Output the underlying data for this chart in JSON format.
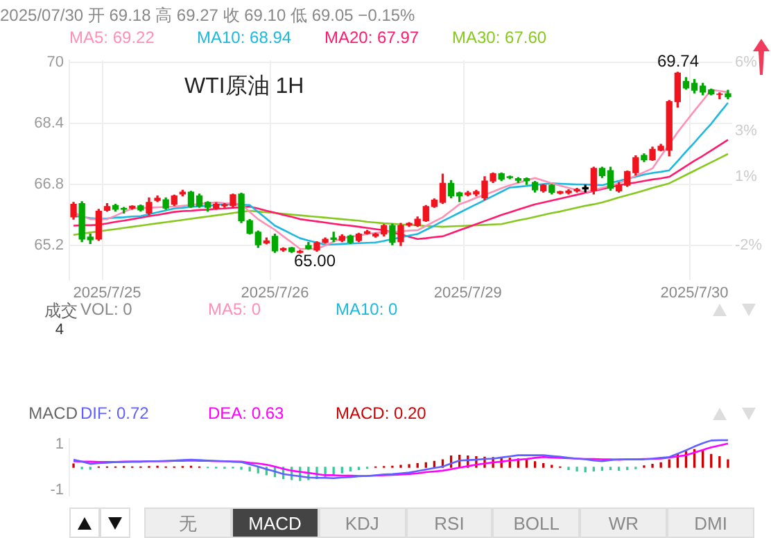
{
  "chart_data": [
    {
      "type": "candlestick",
      "title": "WTI原油 1H",
      "annotations": [
        "2025/07/30 开 69.18 高 69.27 收 69.10 低 69.05 −0.15%",
        "69.74",
        "65.00"
      ],
      "categories": [
        null,
        null,
        null,
        null,
        "2025/7/25",
        null,
        null,
        null,
        null,
        null,
        null,
        null,
        null,
        null,
        null,
        null,
        null,
        null,
        null,
        null,
        null,
        null,
        null,
        null,
        "2025/7/26",
        null,
        null,
        null,
        null,
        null,
        null,
        null,
        null,
        null,
        null,
        null,
        null,
        null,
        null,
        null,
        null,
        null,
        null,
        null,
        null,
        null,
        null,
        "2025/7/29",
        null,
        null,
        null,
        null,
        null,
        null,
        null,
        null,
        null,
        null,
        null,
        null,
        null,
        null,
        null,
        null,
        null,
        null,
        null,
        null,
        null,
        null,
        null,
        null,
        null,
        null,
        "2025/7/30",
        null,
        null,
        null,
        null
      ],
      "ohlc": [
        [
          65.95,
          66.33,
          65.89,
          66.28
        ],
        [
          66.3,
          66.35,
          65.3,
          65.37
        ],
        [
          65.42,
          65.5,
          65.25,
          65.35
        ],
        [
          65.37,
          66.15,
          65.33,
          66.1
        ],
        [
          66.12,
          66.3,
          66.1,
          66.22
        ],
        [
          66.25,
          66.28,
          66.1,
          66.15
        ],
        [
          66.17,
          66.2,
          66.05,
          66.15
        ],
        [
          66.18,
          66.24,
          66.15,
          66.23
        ],
        [
          66.24,
          66.26,
          66.1,
          66.13
        ],
        [
          66.05,
          66.45,
          66.0,
          66.33
        ],
        [
          66.38,
          66.5,
          66.35,
          66.44
        ],
        [
          66.4,
          66.45,
          66.15,
          66.18
        ],
        [
          66.28,
          66.52,
          66.25,
          66.5
        ],
        [
          66.55,
          66.65,
          66.5,
          66.6
        ],
        [
          66.6,
          66.62,
          66.2,
          66.22
        ],
        [
          66.5,
          66.55,
          66.2,
          66.23
        ],
        [
          66.33,
          66.35,
          66.1,
          66.2
        ],
        [
          66.18,
          66.32,
          66.15,
          66.28
        ],
        [
          66.24,
          66.3,
          66.2,
          66.27
        ],
        [
          66.25,
          66.55,
          66.2,
          66.53
        ],
        [
          66.55,
          66.57,
          65.8,
          65.85
        ],
        [
          65.85,
          65.88,
          65.5,
          65.52
        ],
        [
          65.55,
          65.58,
          65.15,
          65.22
        ],
        [
          65.27,
          65.4,
          65.24,
          65.32
        ],
        [
          65.44,
          65.5,
          65.02,
          65.06
        ],
        [
          65.08,
          65.14,
          65.05,
          65.12
        ],
        [
          65.14,
          65.15,
          65.02,
          65.04
        ],
        [
          65.02,
          65.07,
          65.0,
          65.05
        ],
        [
          65.2,
          65.28,
          65.1,
          65.12
        ],
        [
          65.08,
          65.3,
          65.05,
          65.27
        ],
        [
          65.28,
          65.4,
          65.26,
          65.36
        ],
        [
          65.4,
          65.55,
          65.3,
          65.36
        ],
        [
          65.33,
          65.48,
          65.3,
          65.44
        ],
        [
          65.45,
          65.47,
          65.25,
          65.28
        ],
        [
          65.33,
          65.52,
          65.3,
          65.5
        ],
        [
          65.52,
          65.6,
          65.5,
          65.56
        ],
        [
          65.45,
          65.52,
          65.42,
          65.5
        ],
        [
          65.5,
          65.75,
          65.45,
          65.72
        ],
        [
          65.72,
          65.76,
          65.22,
          65.28
        ],
        [
          65.3,
          65.78,
          65.2,
          65.72
        ],
        [
          65.74,
          65.8,
          65.7,
          65.78
        ],
        [
          65.72,
          65.95,
          65.7,
          65.89
        ],
        [
          65.85,
          66.25,
          65.83,
          66.22
        ],
        [
          66.22,
          66.42,
          66.2,
          66.39
        ],
        [
          66.33,
          67.07,
          66.3,
          66.83
        ],
        [
          66.83,
          66.9,
          66.45,
          66.5
        ],
        [
          66.58,
          66.6,
          66.35,
          66.5
        ],
        [
          66.53,
          66.62,
          66.5,
          66.58
        ],
        [
          66.55,
          66.65,
          66.5,
          66.61
        ],
        [
          66.45,
          67.0,
          66.4,
          66.89
        ],
        [
          66.89,
          67.1,
          66.85,
          67.08
        ],
        [
          67.08,
          67.1,
          66.9,
          66.94
        ],
        [
          67.0,
          67.02,
          66.95,
          66.98
        ],
        [
          66.95,
          66.98,
          66.85,
          66.91
        ],
        [
          66.95,
          66.97,
          66.8,
          66.9
        ],
        [
          66.85,
          66.88,
          66.6,
          66.66
        ],
        [
          66.63,
          66.8,
          66.6,
          66.78
        ],
        [
          66.78,
          66.8,
          66.55,
          66.59
        ],
        [
          66.57,
          66.62,
          66.55,
          66.61
        ],
        [
          66.58,
          66.66,
          66.55,
          66.63
        ],
        [
          66.63,
          66.7,
          66.6,
          66.67
        ],
        [
          66.68,
          66.78,
          66.6,
          66.72
        ],
        [
          66.63,
          67.25,
          66.55,
          67.22
        ],
        [
          67.22,
          67.25,
          66.98,
          67.03
        ],
        [
          67.16,
          67.25,
          66.65,
          66.7
        ],
        [
          66.63,
          66.85,
          66.6,
          66.78
        ],
        [
          66.78,
          67.15,
          66.75,
          67.14
        ],
        [
          67.11,
          67.55,
          67.05,
          67.5
        ],
        [
          67.56,
          67.6,
          67.4,
          67.45
        ],
        [
          67.45,
          67.78,
          67.43,
          67.72
        ],
        [
          67.7,
          67.85,
          67.68,
          67.8
        ],
        [
          67.7,
          69.0,
          67.55,
          68.97
        ],
        [
          68.97,
          69.74,
          68.83,
          69.72
        ],
        [
          69.5,
          69.6,
          69.3,
          69.33
        ],
        [
          69.45,
          69.55,
          69.2,
          69.27
        ],
        [
          69.38,
          69.45,
          69.15,
          69.22
        ],
        [
          69.28,
          69.3,
          69.15,
          69.17
        ],
        [
          69.16,
          69.2,
          69.05,
          69.17
        ],
        [
          69.18,
          69.27,
          69.05,
          69.1
        ]
      ],
      "colors": [
        "#f0141e",
        "#00a800",
        "#00a800",
        "#f0141e",
        "#f0141e",
        "#00a800",
        "#00a800",
        "#f0141e",
        "#00a800",
        "#f0141e",
        "#f0141e",
        "#00a800",
        "#f0141e",
        "#f0141e",
        "#00a800",
        "#00a800",
        "#00a800",
        "#f0141e",
        "#f0141e",
        "#f0141e",
        "#00a800",
        "#00a800",
        "#00a800",
        "#f0141e",
        "#00a800",
        "#f0141e",
        "#00a800",
        "#f0141e",
        "#00a800",
        "#f0141e",
        "#f0141e",
        "#00a800",
        "#f0141e",
        "#00a800",
        "#f0141e",
        "#f0141e",
        "#f0141e",
        "#f0141e",
        "#00a800",
        "#f0141e",
        "#f0141e",
        "#f0141e",
        "#f0141e",
        "#f0141e",
        "#f0141e",
        "#00a800",
        "#00a800",
        "#f0141e",
        "#f0141e",
        "#f0141e",
        "#f0141e",
        "#00a800",
        "#00a800",
        "#00a800",
        "#00a800",
        "#00a800",
        "#f0141e",
        "#00a800",
        "#f0141e",
        "#f0141e",
        "#f0141e",
        "#000000",
        "#f0141e",
        "#00a800",
        "#00a800",
        "#f0141e",
        "#f0141e",
        "#f0141e",
        "#00a800",
        "#f0141e",
        "#f0141e",
        "#f0141e",
        "#f0141e",
        "#00a800",
        "#00a800",
        "#00a800",
        "#00a800",
        "#f0141e",
        "#00a800"
      ],
      "series": [
        {
          "name": "MA5: 69.22",
          "type": "line",
          "color": "#ff8fb4",
          "values": [
            66.06,
            65.97,
            65.89,
            65.89,
            65.89,
            65.98,
            66.08,
            66.17,
            66.18,
            66.19,
            66.2,
            66.21,
            66.22,
            66.24,
            66.26,
            66.29,
            66.31,
            66.33,
            66.31,
            66.3,
            66.28,
            66.08,
            65.89,
            65.75,
            65.61,
            65.44,
            65.28,
            65.11,
            65.11,
            65.11,
            65.2,
            65.3,
            65.39,
            65.43,
            65.46,
            65.5,
            65.53,
            65.55,
            65.56,
            65.57,
            65.59,
            65.6,
            65.71,
            65.83,
            65.94,
            66.11,
            66.28,
            66.36,
            66.45,
            66.53,
            66.61,
            66.7,
            66.78,
            66.84,
            66.91,
            66.97,
            66.9,
            66.83,
            66.77,
            66.71,
            66.65,
            66.59,
            66.65,
            66.71,
            66.77,
            66.83,
            66.93,
            67.03,
            67.12,
            67.22,
            67.54,
            67.85,
            68.17,
            68.45,
            68.73,
            69.0,
            69.28,
            69.25,
            69.22
          ]
        },
        {
          "name": "MA10: 68.94",
          "type": "line",
          "color": "#1cb8e0",
          "values": [
            65.97,
            65.95,
            65.92,
            65.9,
            65.91,
            65.93,
            65.94,
            65.96,
            65.97,
            66.02,
            66.07,
            66.12,
            66.17,
            66.19,
            66.21,
            66.23,
            66.24,
            66.26,
            66.28,
            66.27,
            66.27,
            66.26,
            66.08,
            65.9,
            65.72,
            65.61,
            65.5,
            65.39,
            65.33,
            65.28,
            65.22,
            65.23,
            65.24,
            65.25,
            65.26,
            65.27,
            65.28,
            65.32,
            65.37,
            65.41,
            65.46,
            65.5,
            65.61,
            65.72,
            65.84,
            65.95,
            66.06,
            66.17,
            66.28,
            66.39,
            66.5,
            66.61,
            66.72,
            66.74,
            66.76,
            66.79,
            66.81,
            66.83,
            66.82,
            66.81,
            66.8,
            66.8,
            66.79,
            66.78,
            66.84,
            66.89,
            66.95,
            67.0,
            67.06,
            67.1,
            67.13,
            67.17,
            67.41,
            67.66,
            67.9,
            68.15,
            68.39,
            68.67,
            68.94
          ]
        },
        {
          "name": "MA20: 67.97",
          "type": "line",
          "color": "#ff1a6e",
          "values": [
            65.72,
            65.73,
            65.73,
            65.74,
            65.78,
            65.82,
            65.85,
            65.89,
            65.93,
            65.97,
            66.0,
            66.04,
            66.08,
            66.1,
            66.11,
            66.13,
            66.14,
            66.16,
            66.17,
            66.19,
            66.2,
            66.22,
            66.17,
            66.11,
            66.06,
            66.0,
            65.95,
            65.89,
            65.86,
            65.83,
            65.8,
            65.77,
            65.74,
            65.72,
            65.69,
            65.66,
            65.63,
            65.6,
            65.54,
            65.49,
            65.43,
            65.37,
            65.39,
            65.42,
            65.44,
            65.52,
            65.6,
            65.68,
            65.76,
            65.84,
            65.92,
            66.0,
            66.07,
            66.14,
            66.21,
            66.28,
            66.33,
            66.38,
            66.43,
            66.48,
            66.53,
            66.58,
            66.63,
            66.68,
            66.73,
            66.78,
            66.82,
            66.85,
            66.89,
            66.93,
            66.96,
            67.0,
            67.14,
            67.28,
            67.42,
            67.55,
            67.69,
            67.83,
            67.97
          ]
        },
        {
          "name": "MA30: 67.60",
          "type": "line",
          "color": "#86c81e",
          "values": [
            65.48,
            65.51,
            65.54,
            65.57,
            65.6,
            65.63,
            65.66,
            65.69,
            65.72,
            65.75,
            65.78,
            65.81,
            65.84,
            65.87,
            65.9,
            65.93,
            65.96,
            65.99,
            66.02,
            66.05,
            66.08,
            66.11,
            66.09,
            66.07,
            66.05,
            66.03,
            66.01,
            65.99,
            65.97,
            65.95,
            65.93,
            65.91,
            65.89,
            65.87,
            65.85,
            65.82,
            65.8,
            65.78,
            65.77,
            65.75,
            65.74,
            65.73,
            65.71,
            65.7,
            65.69,
            65.7,
            65.71,
            65.72,
            65.73,
            65.74,
            65.75,
            65.76,
            65.81,
            65.86,
            65.9,
            65.95,
            66.0,
            66.05,
            66.09,
            66.14,
            66.19,
            66.24,
            66.28,
            66.33,
            66.39,
            66.46,
            66.52,
            66.58,
            66.64,
            66.71,
            66.77,
            66.83,
            66.94,
            67.05,
            67.16,
            67.27,
            67.38,
            67.49,
            67.6
          ]
        }
      ],
      "ylim": [
        64.3,
        70.05
      ],
      "yticks": [
        65.2,
        66.8,
        68.4,
        70
      ],
      "y2lim": [
        -3.5,
        6.08
      ],
      "y2ticks": [
        {
          "value": -2,
          "label": "-2%"
        },
        {
          "value": 1,
          "label": "1%"
        },
        {
          "value": 3,
          "label": "3%"
        },
        {
          "value": 6,
          "label": "6%"
        }
      ],
      "grid": true,
      "legend": "top"
    },
    {
      "type": "other",
      "title": "成交",
      "annotations": [
        "VOL: 0",
        "4"
      ],
      "series": [
        {
          "name": "MA5: 0",
          "color": "#ff8fb4"
        },
        {
          "name": "MA10: 0",
          "color": "#1cb8e0"
        }
      ]
    },
    {
      "type": "line",
      "title": "MACD",
      "categories": [
        null,
        null,
        null,
        null,
        null,
        null,
        null,
        null,
        null,
        null,
        null,
        null,
        null,
        null,
        null,
        null,
        null,
        null,
        null,
        null,
        null,
        null,
        null,
        null,
        null,
        null,
        null,
        null,
        null,
        null,
        null,
        null,
        null,
        null,
        null,
        null,
        null,
        null,
        null,
        null,
        null,
        null,
        null,
        null,
        null,
        null,
        null,
        null,
        null,
        null,
        null,
        null,
        null,
        null,
        null,
        null,
        null,
        null,
        null,
        null,
        null,
        null,
        null,
        null,
        null,
        null,
        null,
        null,
        null,
        null,
        null,
        null,
        null,
        null,
        null,
        null,
        null,
        null,
        null
      ],
      "series": [
        {
          "name": "DIF: 0.72",
          "color": "#6060ff",
          "values": [
            0.2,
            0.15,
            0.09,
            0.11,
            0.12,
            0.14,
            0.14,
            0.15,
            0.15,
            0.16,
            0.16,
            0.17,
            0.18,
            0.19,
            0.2,
            0.19,
            0.18,
            0.17,
            0.16,
            0.15,
            0.14,
            0.08,
            0.02,
            -0.05,
            -0.11,
            -0.18,
            -0.21,
            -0.24,
            -0.27,
            -0.28,
            -0.28,
            -0.29,
            -0.27,
            -0.26,
            -0.24,
            -0.23,
            -0.21,
            -0.19,
            -0.18,
            -0.16,
            -0.14,
            -0.1,
            -0.06,
            -0.02,
            0.02,
            0.1,
            0.18,
            0.19,
            0.2,
            0.22,
            0.23,
            0.26,
            0.29,
            0.32,
            0.32,
            0.32,
            0.32,
            0.3,
            0.28,
            0.25,
            0.23,
            0.21,
            0.18,
            0.16,
            0.19,
            0.21,
            0.21,
            0.21,
            0.21,
            0.23,
            0.25,
            0.27,
            0.36,
            0.45,
            0.55,
            0.64,
            0.71,
            0.72,
            0.72
          ]
        },
        {
          "name": "DEA: 0.63",
          "color": "#ff00ff",
          "values": [
            0.16,
            0.15,
            0.15,
            0.14,
            0.14,
            0.14,
            0.15,
            0.15,
            0.15,
            0.16,
            0.16,
            0.16,
            0.17,
            0.17,
            0.18,
            0.17,
            0.17,
            0.16,
            0.16,
            0.15,
            0.15,
            0.12,
            0.1,
            0.07,
            0.02,
            -0.04,
            -0.09,
            -0.12,
            -0.15,
            -0.18,
            -0.21,
            -0.21,
            -0.22,
            -0.22,
            -0.23,
            -0.23,
            -0.22,
            -0.21,
            -0.2,
            -0.19,
            -0.18,
            -0.16,
            -0.13,
            -0.11,
            -0.09,
            -0.05,
            -0.01,
            0.03,
            0.07,
            0.1,
            0.13,
            0.15,
            0.18,
            0.2,
            0.22,
            0.25,
            0.27,
            0.26,
            0.25,
            0.24,
            0.23,
            0.22,
            0.22,
            0.21,
            0.21,
            0.2,
            0.21,
            0.21,
            0.22,
            0.22,
            0.23,
            0.26,
            0.29,
            0.32,
            0.39,
            0.46,
            0.53,
            0.58,
            0.63
          ]
        },
        {
          "name": "MACD: 0.20",
          "type": "bar",
          "color": "#cc0000",
          "values": [
            0.09,
            -0.04,
            -0.05,
            0.01,
            0.01,
            0.01,
            0.02,
            0.01,
            0.01,
            0.02,
            0.03,
            0.01,
            0.01,
            0.02,
            0.03,
            0.01,
            -0.01,
            -0.02,
            -0.03,
            -0.02,
            -0.05,
            -0.1,
            -0.15,
            -0.2,
            -0.25,
            -0.3,
            -0.33,
            -0.35,
            -0.33,
            -0.3,
            -0.25,
            -0.2,
            -0.15,
            -0.1,
            -0.06,
            -0.03,
            0.01,
            0.02,
            0.03,
            0.05,
            0.07,
            0.1,
            0.12,
            0.16,
            0.2,
            0.3,
            0.32,
            0.3,
            0.28,
            0.27,
            0.26,
            0.25,
            0.24,
            0.22,
            0.2,
            0.15,
            0.1,
            0.05,
            0.01,
            -0.06,
            -0.1,
            -0.12,
            -0.1,
            -0.08,
            -0.06,
            -0.08,
            -0.06,
            -0.04,
            0.04,
            0.08,
            0.12,
            0.2,
            0.35,
            0.42,
            0.47,
            0.44,
            0.34,
            0.28,
            0.2
          ],
          "colors": [
            "#cc0000",
            "#33cc99",
            "#33cc99",
            "#cc0000",
            "#cc0000",
            "#cc0000",
            "#cc0000",
            "#cc0000",
            "#cc0000",
            "#cc0000",
            "#cc0000",
            "#cc0000",
            "#cc0000",
            "#cc0000",
            "#cc0000",
            "#cc0000",
            "#33cc99",
            "#33cc99",
            "#33cc99",
            "#33cc99",
            "#33cc99",
            "#33cc99",
            "#33cc99",
            "#33cc99",
            "#33cc99",
            "#33cc99",
            "#33cc99",
            "#33cc99",
            "#33cc99",
            "#33cc99",
            "#33cc99",
            "#33cc99",
            "#33cc99",
            "#33cc99",
            "#33cc99",
            "#33cc99",
            "#cc0000",
            "#cc0000",
            "#cc0000",
            "#cc0000",
            "#cc0000",
            "#cc0000",
            "#cc0000",
            "#cc0000",
            "#cc0000",
            "#cc0000",
            "#cc0000",
            "#cc0000",
            "#cc0000",
            "#cc0000",
            "#cc0000",
            "#cc0000",
            "#cc0000",
            "#cc0000",
            "#cc0000",
            "#cc0000",
            "#cc0000",
            "#cc0000",
            "#cc0000",
            "#33cc99",
            "#33cc99",
            "#33cc99",
            "#33cc99",
            "#33cc99",
            "#33cc99",
            "#33cc99",
            "#33cc99",
            "#33cc99",
            "#cc0000",
            "#cc0000",
            "#cc0000",
            "#cc0000",
            "#cc0000",
            "#cc0000",
            "#cc0000",
            "#cc0000",
            "#cc0000",
            "#cc0000",
            "#cc0000"
          ]
        }
      ],
      "ylim": [
        -0.75,
        0.75
      ],
      "yticks": [
        {
          "value": -0.6,
          "label": "-1"
        },
        {
          "value": 0.6,
          "label": "1"
        }
      ],
      "tick_labels": "y",
      "grid": "x",
      "legend": "top"
    },
    {
      "type": "other",
      "annotations": [
        "无",
        "MACD",
        "KDJ",
        "RSI",
        "BOLL",
        "WR",
        "DMI"
      ]
    }
  ]
}
